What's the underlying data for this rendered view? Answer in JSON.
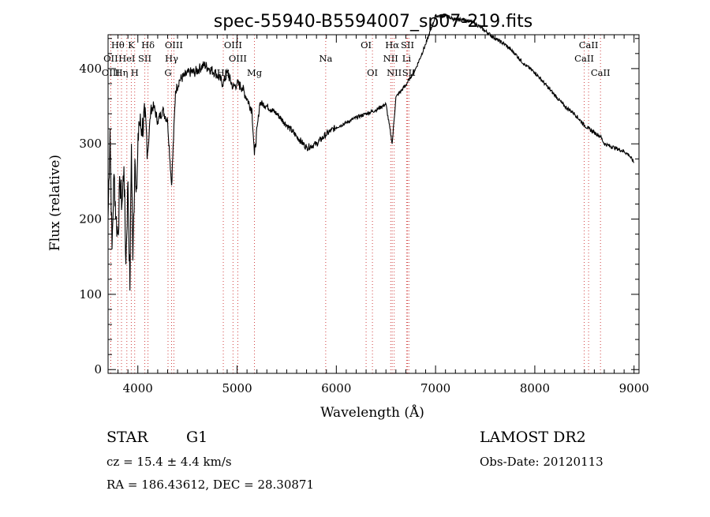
{
  "chart_data": {
    "type": "line",
    "title": "spec-55940-B5594007_sp07-219.fits",
    "xlabel": "Wavelength (Å)",
    "ylabel": "Flux (relative)",
    "xlim": [
      3700,
      9050
    ],
    "ylim": [
      -5,
      445
    ],
    "xticks": [
      4000,
      5000,
      6000,
      7000,
      8000,
      9000
    ],
    "yticks": [
      0,
      100,
      200,
      300,
      400
    ],
    "grid": false,
    "series": [
      {
        "x": [
          3700,
          3720,
          3740,
          3760,
          3780,
          3800,
          3820,
          3840,
          3860,
          3880,
          3900,
          3920,
          3935,
          3950,
          3970,
          3990,
          4010,
          4040,
          4070,
          4101,
          4130,
          4160,
          4200,
          4250,
          4300,
          4340,
          4380,
          4420,
          4470,
          4520,
          4570,
          4620,
          4670,
          4720,
          4780,
          4861,
          4900,
          4960,
          5000,
          5050,
          5100,
          5150,
          5175,
          5230,
          5300,
          5400,
          5500,
          5600,
          5700,
          5800,
          5893,
          5950,
          6000,
          6100,
          6200,
          6300,
          6400,
          6500,
          6563,
          6600,
          6700,
          6800,
          6900,
          7000,
          7100,
          7200,
          7300,
          7400,
          7500,
          7600,
          7700,
          7800,
          7900,
          8000,
          8100,
          8200,
          8300,
          8400,
          8498,
          8542,
          8600,
          8662,
          8700,
          8800,
          8900,
          8950,
          9000
        ],
        "y": [
          200,
          320,
          160,
          260,
          200,
          180,
          250,
          220,
          270,
          140,
          250,
          105,
          300,
          145,
          280,
          240,
          330,
          320,
          335,
          290,
          345,
          350,
          330,
          345,
          330,
          245,
          370,
          385,
          390,
          395,
          395,
          400,
          405,
          400,
          395,
          380,
          395,
          375,
          380,
          375,
          360,
          345,
          285,
          355,
          350,
          340,
          325,
          310,
          295,
          300,
          312,
          318,
          322,
          328,
          335,
          340,
          345,
          353,
          300,
          362,
          378,
          400,
          432,
          470,
          470,
          465,
          465,
          460,
          450,
          440,
          432,
          420,
          405,
          395,
          380,
          365,
          350,
          340,
          325,
          320,
          315,
          310,
          300,
          295,
          290,
          285,
          275
        ]
      }
    ],
    "line_marks": [
      {
        "label": "Hθ",
        "wave": 3798,
        "row": 0
      },
      {
        "label": "K",
        "wave": 3934,
        "row": 0
      },
      {
        "label": "Hδ",
        "wave": 4102,
        "row": 0
      },
      {
        "label": "OIII",
        "wave": 4363,
        "row": 0
      },
      {
        "label": "OIII",
        "wave": 4959,
        "row": 0
      },
      {
        "label": "OI",
        "wave": 6300,
        "row": 0
      },
      {
        "label": "Hα",
        "wave": 6563,
        "row": 0
      },
      {
        "label": "SII",
        "wave": 6717,
        "row": 0
      },
      {
        "label": "CaII",
        "wave": 8542,
        "row": 0
      },
      {
        "label": "OII",
        "wave": 3727,
        "row": 1
      },
      {
        "label": "HeI",
        "wave": 3889,
        "row": 1
      },
      {
        "label": "SII",
        "wave": 4070,
        "row": 1
      },
      {
        "label": "Hγ",
        "wave": 4340,
        "row": 1
      },
      {
        "label": "OIII",
        "wave": 5007,
        "row": 1
      },
      {
        "label": "Na",
        "wave": 5893,
        "row": 1
      },
      {
        "label": "NII",
        "wave": 6548,
        "row": 1
      },
      {
        "label": "Li",
        "wave": 6708,
        "row": 1
      },
      {
        "label": "CaII",
        "wave": 8498,
        "row": 1
      },
      {
        "label": "OIII",
        "wave": 3727,
        "row": 2
      },
      {
        "label": "Hη",
        "wave": 3835,
        "row": 2
      },
      {
        "label": "H",
        "wave": 3968,
        "row": 2
      },
      {
        "label": "G",
        "wave": 4304,
        "row": 2
      },
      {
        "label": "Hβ",
        "wave": 4861,
        "row": 2
      },
      {
        "label": "Mg",
        "wave": 5175,
        "row": 2
      },
      {
        "label": "OI",
        "wave": 6364,
        "row": 2
      },
      {
        "label": "NII",
        "wave": 6583,
        "row": 2
      },
      {
        "label": "SII",
        "wave": 6731,
        "row": 2
      },
      {
        "label": "CaII",
        "wave": 8662,
        "row": 2
      }
    ]
  },
  "info": {
    "object_class": "STAR",
    "subclass": "G1",
    "survey": "LAMOST DR2",
    "cz": "cz = 15.4 ± 4.4 km/s",
    "obs_date": "Obs-Date: 20120113",
    "coords": "RA = 186.43612, DEC =  28.30871"
  },
  "colors": {
    "spectrum": "#000000",
    "line_marker": "#d04040",
    "axes": "#000000"
  }
}
